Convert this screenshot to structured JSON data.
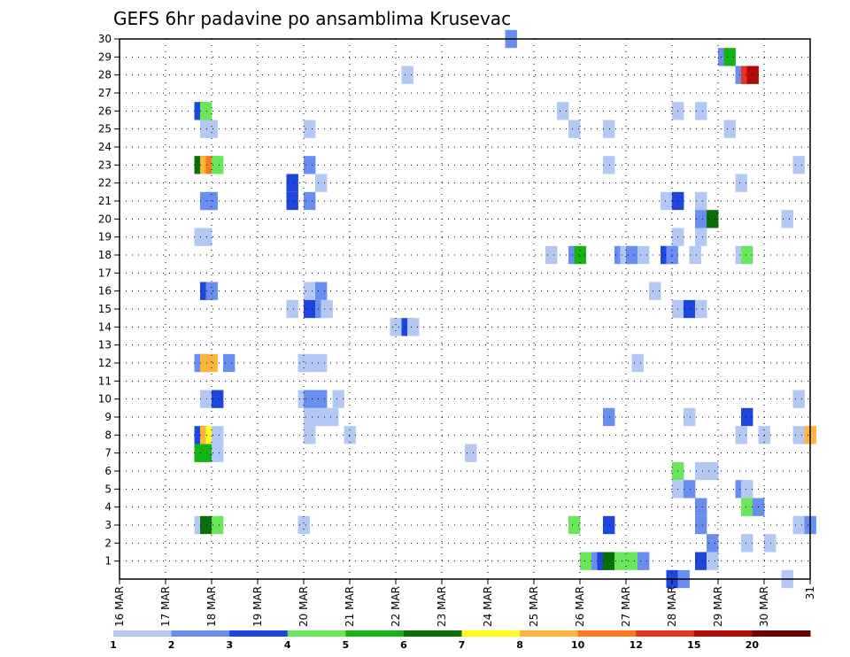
{
  "chart_data": {
    "type": "heatmap",
    "title": "GEFS 6hr padavine po ansamblima Krusevac",
    "xlabel": "",
    "ylabel": "",
    "x_ticks": [
      "16 MAR",
      "17 MAR",
      "18 MAR",
      "19 MAR",
      "20 MAR",
      "21 MAR",
      "22 MAR",
      "23 MAR",
      "24 MAR",
      "25 MAR",
      "26 MAR",
      "27 MAR",
      "28 MAR",
      "29 MAR",
      "30 MAR",
      "31"
    ],
    "x_range_days": [
      16,
      31
    ],
    "y_ticks": [
      1,
      2,
      3,
      4,
      5,
      6,
      7,
      8,
      9,
      10,
      11,
      12,
      13,
      14,
      15,
      16,
      17,
      18,
      19,
      20,
      21,
      22,
      23,
      24,
      25,
      26,
      27,
      28,
      29,
      30
    ],
    "y_range": [
      0,
      30
    ],
    "grid": true,
    "colorbar": {
      "labels": [
        "1",
        "2",
        "3",
        "4",
        "5",
        "6",
        "7",
        "8",
        "10",
        "12",
        "15",
        "20"
      ],
      "colors": [
        "#b4c8f5",
        "#6a8ef0",
        "#1e46dc",
        "#6ae65a",
        "#14b414",
        "#0a6e0a",
        "#ffff1e",
        "#ffb43c",
        "#ff781e",
        "#e6321e",
        "#b40a0a",
        "#6e0000"
      ]
    },
    "cells": [
      {
        "day": 24.375,
        "member": 30,
        "level": 1
      },
      {
        "day": 29.0,
        "member": 29,
        "level": 1
      },
      {
        "day": 29.125,
        "member": 29,
        "level": 4
      },
      {
        "day": 22.125,
        "member": 28,
        "level": 0
      },
      {
        "day": 29.375,
        "member": 28,
        "level": 1
      },
      {
        "day": 29.5,
        "member": 28,
        "level": 9
      },
      {
        "day": 29.625,
        "member": 28,
        "level": 10
      },
      {
        "day": 17.625,
        "member": 26,
        "level": 2
      },
      {
        "day": 17.75,
        "member": 26,
        "level": 3
      },
      {
        "day": 25.5,
        "member": 26,
        "level": 0
      },
      {
        "day": 28.0,
        "member": 26,
        "level": 0
      },
      {
        "day": 28.5,
        "member": 26,
        "level": 0
      },
      {
        "day": 17.75,
        "member": 25,
        "level": 0
      },
      {
        "day": 17.875,
        "member": 25,
        "level": 0
      },
      {
        "day": 20.0,
        "member": 25,
        "level": 0
      },
      {
        "day": 25.75,
        "member": 25,
        "level": 0
      },
      {
        "day": 26.5,
        "member": 25,
        "level": 0
      },
      {
        "day": 29.125,
        "member": 25,
        "level": 0
      },
      {
        "day": 17.625,
        "member": 23,
        "level": 5
      },
      {
        "day": 17.75,
        "member": 23,
        "level": 7
      },
      {
        "day": 17.875,
        "member": 23,
        "level": 8
      },
      {
        "day": 18.0,
        "member": 23,
        "level": 3
      },
      {
        "day": 20.0,
        "member": 23,
        "level": 1
      },
      {
        "day": 26.5,
        "member": 23,
        "level": 0
      },
      {
        "day": 30.625,
        "member": 23,
        "level": 0
      },
      {
        "day": 19.625,
        "member": 22,
        "level": 2
      },
      {
        "day": 20.25,
        "member": 22,
        "level": 0
      },
      {
        "day": 29.375,
        "member": 22,
        "level": 0
      },
      {
        "day": 19.625,
        "member": 21,
        "level": 2
      },
      {
        "day": 17.75,
        "member": 21,
        "level": 1
      },
      {
        "day": 17.875,
        "member": 21,
        "level": 1
      },
      {
        "day": 20.0,
        "member": 21,
        "level": 1
      },
      {
        "day": 27.75,
        "member": 21,
        "level": 0
      },
      {
        "day": 28.0,
        "member": 21,
        "level": 2
      },
      {
        "day": 28.5,
        "member": 21,
        "level": 0
      },
      {
        "day": 28.5,
        "member": 20,
        "level": 1
      },
      {
        "day": 28.75,
        "member": 20,
        "level": 5
      },
      {
        "day": 30.375,
        "member": 20,
        "level": 0
      },
      {
        "day": 17.625,
        "member": 19,
        "level": 0
      },
      {
        "day": 17.75,
        "member": 19,
        "level": 0
      },
      {
        "day": 28.0,
        "member": 19,
        "level": 0
      },
      {
        "day": 28.5,
        "member": 19,
        "level": 0
      },
      {
        "day": 25.25,
        "member": 18,
        "level": 0
      },
      {
        "day": 25.75,
        "member": 18,
        "level": 1
      },
      {
        "day": 25.875,
        "member": 18,
        "level": 4
      },
      {
        "day": 26.75,
        "member": 18,
        "level": 1
      },
      {
        "day": 26.875,
        "member": 18,
        "level": 0
      },
      {
        "day": 27.0,
        "member": 18,
        "level": 1
      },
      {
        "day": 27.25,
        "member": 18,
        "level": 0
      },
      {
        "day": 27.75,
        "member": 18,
        "level": 2
      },
      {
        "day": 27.875,
        "member": 18,
        "level": 1
      },
      {
        "day": 28.375,
        "member": 18,
        "level": 0
      },
      {
        "day": 29.375,
        "member": 18,
        "level": 0
      },
      {
        "day": 29.5,
        "member": 18,
        "level": 3
      },
      {
        "day": 17.75,
        "member": 16,
        "level": 2
      },
      {
        "day": 17.875,
        "member": 16,
        "level": 1
      },
      {
        "day": 20.0,
        "member": 16,
        "level": 0
      },
      {
        "day": 20.25,
        "member": 16,
        "level": 1
      },
      {
        "day": 27.5,
        "member": 16,
        "level": 0
      },
      {
        "day": 19.625,
        "member": 15,
        "level": 0
      },
      {
        "day": 20.0,
        "member": 15,
        "level": 2
      },
      {
        "day": 20.25,
        "member": 15,
        "level": 1
      },
      {
        "day": 20.375,
        "member": 15,
        "level": 0
      },
      {
        "day": 28.0,
        "member": 15,
        "level": 0
      },
      {
        "day": 28.25,
        "member": 15,
        "level": 2
      },
      {
        "day": 28.5,
        "member": 15,
        "level": 0
      },
      {
        "day": 21.875,
        "member": 14,
        "level": 0
      },
      {
        "day": 22.125,
        "member": 14,
        "level": 2
      },
      {
        "day": 22.25,
        "member": 14,
        "level": 0
      },
      {
        "day": 17.625,
        "member": 12,
        "level": 1
      },
      {
        "day": 17.75,
        "member": 12,
        "level": 7
      },
      {
        "day": 17.875,
        "member": 12,
        "level": 7
      },
      {
        "day": 18.25,
        "member": 12,
        "level": 1
      },
      {
        "day": 19.875,
        "member": 12,
        "level": 0
      },
      {
        "day": 20.0,
        "member": 12,
        "level": 0
      },
      {
        "day": 20.25,
        "member": 12,
        "level": 0
      },
      {
        "day": 27.125,
        "member": 12,
        "level": 0
      },
      {
        "day": 17.75,
        "member": 10,
        "level": 0
      },
      {
        "day": 18.0,
        "member": 10,
        "level": 2
      },
      {
        "day": 19.875,
        "member": 10,
        "level": 0
      },
      {
        "day": 20.0,
        "member": 10,
        "level": 1
      },
      {
        "day": 20.25,
        "member": 10,
        "level": 1
      },
      {
        "day": 20.625,
        "member": 10,
        "level": 0
      },
      {
        "day": 30.625,
        "member": 10,
        "level": 0
      },
      {
        "day": 20.0,
        "member": 9,
        "level": 0
      },
      {
        "day": 20.25,
        "member": 9,
        "level": 0
      },
      {
        "day": 20.5,
        "member": 9,
        "level": 0
      },
      {
        "day": 26.5,
        "member": 9,
        "level": 1
      },
      {
        "day": 28.25,
        "member": 9,
        "level": 0
      },
      {
        "day": 29.5,
        "member": 9,
        "level": 2
      },
      {
        "day": 17.625,
        "member": 8,
        "level": 2
      },
      {
        "day": 17.75,
        "member": 8,
        "level": 7
      },
      {
        "day": 17.875,
        "member": 8,
        "level": 6
      },
      {
        "day": 18.0,
        "member": 8,
        "level": 0
      },
      {
        "day": 20.0,
        "member": 8,
        "level": 0
      },
      {
        "day": 20.875,
        "member": 8,
        "level": 0
      },
      {
        "day": 29.375,
        "member": 8,
        "level": 0
      },
      {
        "day": 29.875,
        "member": 8,
        "level": 0
      },
      {
        "day": 30.625,
        "member": 8,
        "level": 0
      },
      {
        "day": 30.875,
        "member": 8,
        "level": 7
      },
      {
        "day": 17.625,
        "member": 7,
        "level": 4
      },
      {
        "day": 17.75,
        "member": 7,
        "level": 4
      },
      {
        "day": 18.0,
        "member": 7,
        "level": 0
      },
      {
        "day": 23.5,
        "member": 7,
        "level": 0
      },
      {
        "day": 28.0,
        "member": 6,
        "level": 3
      },
      {
        "day": 28.5,
        "member": 6,
        "level": 0
      },
      {
        "day": 28.75,
        "member": 6,
        "level": 0
      },
      {
        "day": 28.0,
        "member": 5,
        "level": 0
      },
      {
        "day": 28.25,
        "member": 5,
        "level": 1
      },
      {
        "day": 29.375,
        "member": 5,
        "level": 1
      },
      {
        "day": 29.5,
        "member": 5,
        "level": 0
      },
      {
        "day": 28.5,
        "member": 4,
        "level": 1
      },
      {
        "day": 29.5,
        "member": 4,
        "level": 3
      },
      {
        "day": 29.75,
        "member": 4,
        "level": 1
      },
      {
        "day": 17.625,
        "member": 3,
        "level": 0
      },
      {
        "day": 17.75,
        "member": 3,
        "level": 5
      },
      {
        "day": 18.0,
        "member": 3,
        "level": 3
      },
      {
        "day": 19.875,
        "member": 3,
        "level": 0
      },
      {
        "day": 25.75,
        "member": 3,
        "level": 3
      },
      {
        "day": 26.5,
        "member": 3,
        "level": 2
      },
      {
        "day": 28.5,
        "member": 3,
        "level": 1
      },
      {
        "day": 30.625,
        "member": 3,
        "level": 0
      },
      {
        "day": 30.875,
        "member": 3,
        "level": 1
      },
      {
        "day": 28.75,
        "member": 2,
        "level": 1
      },
      {
        "day": 29.5,
        "member": 2,
        "level": 0
      },
      {
        "day": 30.0,
        "member": 2,
        "level": 0
      },
      {
        "day": 26.0,
        "member": 1,
        "level": 3
      },
      {
        "day": 26.25,
        "member": 1,
        "level": 1
      },
      {
        "day": 26.375,
        "member": 1,
        "level": 2
      },
      {
        "day": 26.5,
        "member": 1,
        "level": 5
      },
      {
        "day": 26.75,
        "member": 1,
        "level": 3
      },
      {
        "day": 27.0,
        "member": 1,
        "level": 3
      },
      {
        "day": 27.25,
        "member": 1,
        "level": 1
      },
      {
        "day": 28.5,
        "member": 1,
        "level": 2
      },
      {
        "day": 28.75,
        "member": 1,
        "level": 0
      },
      {
        "day": 27.875,
        "member": 0,
        "level": 2
      },
      {
        "day": 28.125,
        "member": 0,
        "level": 1
      },
      {
        "day": 30.375,
        "member": 0,
        "level": 0
      }
    ]
  }
}
